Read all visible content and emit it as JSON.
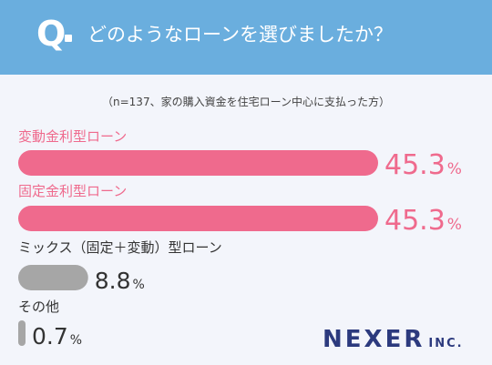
{
  "header": {
    "q_letter": "Q",
    "question": "どのようなローンを選びましたか？"
  },
  "note": "（n=137、家の購入資金を住宅ローン中心に支払った方）",
  "chart_data": {
    "type": "bar",
    "orientation": "horizontal",
    "categories": [
      "変動金利型ローン",
      "固定金利型ローン",
      "ミックス（固定＋変動）型ローン",
      "その他"
    ],
    "values": [
      45.3,
      45.3,
      8.8,
      0.7
    ],
    "value_labels": [
      "45.3",
      "45.3",
      "8.8",
      "0.7"
    ],
    "unit": "%",
    "colors": [
      "#ef6a8d",
      "#ef6a8d",
      "#a6a6a6",
      "#a6a6a6"
    ],
    "label_colors": [
      "#ef6a8d",
      "#ef6a8d",
      "#333333",
      "#333333"
    ],
    "title": "",
    "xlabel": "",
    "ylabel": "",
    "xlim": [
      0,
      45.3
    ],
    "grid": false,
    "legend": "none"
  },
  "logo": {
    "main": "NEXER",
    "sub": "INC."
  }
}
